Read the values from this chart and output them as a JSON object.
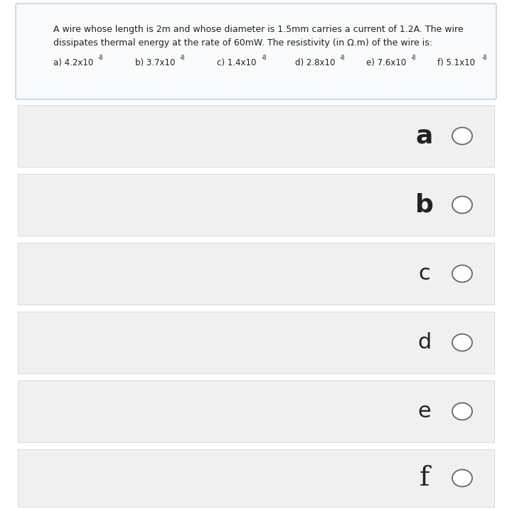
{
  "bg_color": "#ffffff",
  "question_box_color": "#f8fafc",
  "question_box_border": "#b8cfe0",
  "option_box_color": "#f0f0f0",
  "option_box_border": "#cccccc",
  "text_color": "#222222",
  "circle_color": "#666666",
  "question_line1": "A wire whose length is 2m and whose diameter is 1.5mm carries a current of 1.2A. The wire",
  "question_line2": "dissipates thermal energy at the rate of 60mW. The resistivity (in Ω.m) of the wire is:",
  "choices": [
    "a",
    "b",
    "c",
    "d",
    "e",
    "f"
  ],
  "options_bases": [
    "a) 4.2x10",
    "b) 3.7x10",
    "c) 1.4x10",
    "d) 2.8x10",
    "e) 7.6x10",
    "f) 5.1x10"
  ],
  "options_sups": [
    "-8",
    "-8",
    "-8",
    "-8",
    "-8",
    "-8"
  ],
  "font_size_question": 9.0,
  "font_size_options": 8.5,
  "font_size_choice_ab": 22,
  "font_size_choice_cdef": 18,
  "font_size_choice_f": 24
}
